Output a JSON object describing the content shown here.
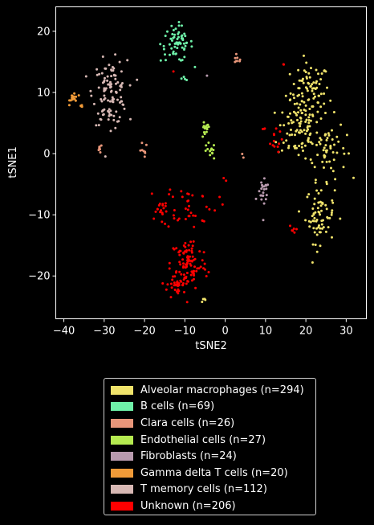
{
  "chart_data": {
    "type": "scatter",
    "xlabel": "tSNE2",
    "ylabel": "tSNE1",
    "xlim": [
      -42,
      35
    ],
    "ylim": [
      -27,
      24
    ],
    "xticks": [
      -40,
      -30,
      -20,
      -10,
      0,
      10,
      20,
      30
    ],
    "yticks": [
      -20,
      -10,
      0,
      10,
      20
    ],
    "grid": false,
    "legend_position": "below",
    "series": [
      {
        "name": "Alveolar macrophages (n=294)",
        "color": "#f0e36b",
        "count": 294,
        "clusters": [
          {
            "cx": 21,
            "cy": 10,
            "sx": 2.4,
            "sy": 2.4,
            "n": 85
          },
          {
            "cx": 18,
            "cy": 4,
            "sx": 2.5,
            "sy": 2.5,
            "n": 75
          },
          {
            "cx": 25,
            "cy": 1,
            "sx": 2.5,
            "sy": 2.5,
            "n": 60
          },
          {
            "cx": 23.5,
            "cy": -10,
            "sx": 1.8,
            "sy": 2.3,
            "n": 70
          },
          {
            "cx": -5,
            "cy": -24.2,
            "sx": 0.5,
            "sy": 0.3,
            "n": 4
          }
        ]
      },
      {
        "name": "B cells (n=69)",
        "color": "#6ef0a8",
        "count": 69,
        "clusters": [
          {
            "cx": -12,
            "cy": 18,
            "sx": 2.0,
            "sy": 1.5,
            "n": 65
          },
          {
            "cx": -10,
            "cy": 12.3,
            "sx": 0.4,
            "sy": 0.5,
            "n": 4
          }
        ]
      },
      {
        "name": "Clara cells (n=26)",
        "color": "#e8967a",
        "count": 26,
        "clusters": [
          {
            "cx": 3,
            "cy": 15.3,
            "sx": 0.6,
            "sy": 0.3,
            "n": 8
          },
          {
            "cx": -31,
            "cy": 0.8,
            "sx": 0.3,
            "sy": 0.4,
            "n": 8
          },
          {
            "cx": -20.5,
            "cy": 0.5,
            "sx": 0.6,
            "sy": 0.6,
            "n": 8
          },
          {
            "cx": 4.5,
            "cy": -0.5,
            "sx": 0.3,
            "sy": 0.3,
            "n": 2
          }
        ]
      },
      {
        "name": "Endothelial cells (n=27)",
        "color": "#b5ea50",
        "count": 27,
        "clusters": [
          {
            "cx": -5,
            "cy": 3.8,
            "sx": 0.6,
            "sy": 0.7,
            "n": 14
          },
          {
            "cx": -3.8,
            "cy": 0.3,
            "sx": 0.7,
            "sy": 0.7,
            "n": 13
          }
        ]
      },
      {
        "name": "Fibroblasts (n=24)",
        "color": "#b89aae",
        "count": 24,
        "clusters": [
          {
            "cx": 9.5,
            "cy": -6.5,
            "sx": 0.7,
            "sy": 1.0,
            "n": 22
          },
          {
            "cx": -4.5,
            "cy": 12.7,
            "sx": 0.1,
            "sy": 0.1,
            "n": 1
          },
          {
            "cx": 9.5,
            "cy": -11,
            "sx": 0.1,
            "sy": 0.1,
            "n": 1
          }
        ]
      },
      {
        "name": "Gamma delta T cells (n=20)",
        "color": "#f09a38",
        "count": 20,
        "clusters": [
          {
            "cx": -37.5,
            "cy": 9.2,
            "sx": 0.5,
            "sy": 0.5,
            "n": 16
          },
          {
            "cx": -35.5,
            "cy": 7.8,
            "sx": 0.3,
            "sy": 0.2,
            "n": 4
          }
        ]
      },
      {
        "name": "T memory cells (n=112)",
        "color": "#d7b8b4",
        "count": 112,
        "clusters": [
          {
            "cx": -28.5,
            "cy": 10,
            "sx": 2.1,
            "sy": 2.6,
            "n": 112
          }
        ]
      },
      {
        "name": "Unknown (n=206)",
        "color": "#ff0000",
        "count": 206,
        "clusters": [
          {
            "cx": -9,
            "cy": -18,
            "sx": 2.3,
            "sy": 2.2,
            "n": 90
          },
          {
            "cx": -12,
            "cy": -21.5,
            "sx": 1.2,
            "sy": 1.2,
            "n": 35
          },
          {
            "cx": -9,
            "cy": -8.5,
            "sx": 3.5,
            "sy": 1.8,
            "n": 40
          },
          {
            "cx": -16,
            "cy": -9,
            "sx": 1.2,
            "sy": 0.8,
            "n": 15
          },
          {
            "cx": 12,
            "cy": 2,
            "sx": 1.0,
            "sy": 0.9,
            "n": 12
          },
          {
            "cx": 16.5,
            "cy": -12.5,
            "sx": 0.5,
            "sy": 0.4,
            "n": 6
          },
          {
            "cx": 14.5,
            "cy": 14.5,
            "sx": 0.1,
            "sy": 0.1,
            "n": 2
          },
          {
            "cx": 9.5,
            "cy": 4,
            "sx": 0.2,
            "sy": 0.2,
            "n": 3
          },
          {
            "cx": -13,
            "cy": 13.5,
            "sx": 0.1,
            "sy": 0.1,
            "n": 1
          },
          {
            "cx": 0,
            "cy": -4.3,
            "sx": 0.3,
            "sy": 0.2,
            "n": 2
          }
        ]
      }
    ]
  }
}
